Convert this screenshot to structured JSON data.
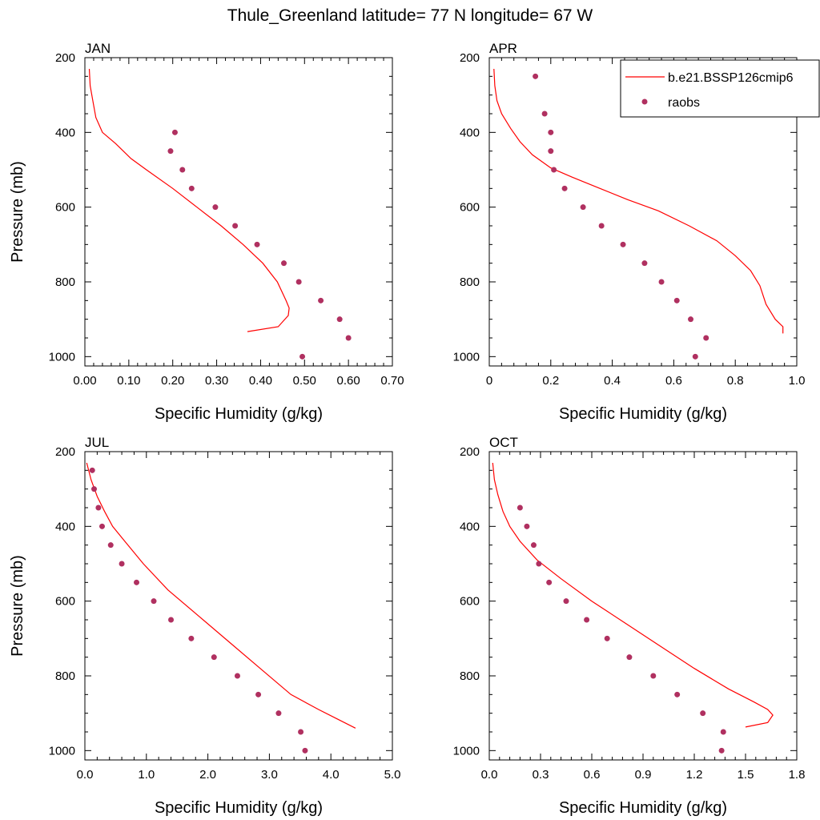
{
  "figure_title": "Thule_Greenland  latitude= 77 N longitude= 67 W",
  "colors": {
    "model": "#ff0000",
    "obs": "#b03060"
  },
  "legend": {
    "placement": "top-right",
    "model_label": "b.e21.BSSP126cmip6",
    "obs_label": "raobs"
  },
  "chart_data": [
    {
      "type": "line",
      "title": "JAN",
      "xlabel": "Specific Humidity (g/kg)",
      "ylabel": "Pressure (mb)",
      "xlim": [
        0,
        0.7
      ],
      "ylim": [
        200,
        1025
      ],
      "y_reversed": true,
      "x_ticks": [
        "0.00",
        "0.10",
        "0.20",
        "0.30",
        "0.40",
        "0.50",
        "0.60",
        "0.70"
      ],
      "x_tick_values": [
        0,
        0.1,
        0.2,
        0.3,
        0.4,
        0.5,
        0.6,
        0.7
      ],
      "y_ticks": [
        "200",
        "400",
        "600",
        "800",
        "1000"
      ],
      "y_tick_values": [
        200,
        400,
        600,
        800,
        1000
      ],
      "series": [
        {
          "name": "b.e21.BSSP126cmip6",
          "kind": "line",
          "x": [
            0.01,
            0.012,
            0.018,
            0.025,
            0.04,
            0.07,
            0.105,
            0.14,
            0.2,
            0.255,
            0.31,
            0.36,
            0.405,
            0.438,
            0.458,
            0.465,
            0.463,
            0.44,
            0.37
          ],
          "y": [
            230,
            275,
            315,
            360,
            400,
            430,
            470,
            500,
            550,
            600,
            650,
            700,
            750,
            800,
            850,
            870,
            890,
            920,
            933
          ]
        },
        {
          "name": "raobs",
          "kind": "scatter",
          "x": [
            0.205,
            0.195,
            0.222,
            0.243,
            0.297,
            0.342,
            0.392,
            0.453,
            0.487,
            0.537,
            0.58,
            0.6,
            0.495
          ],
          "y": [
            400,
            450,
            500,
            550,
            600,
            650,
            700,
            750,
            800,
            850,
            900,
            950,
            1000
          ]
        }
      ]
    },
    {
      "type": "line",
      "title": "APR",
      "xlabel": "Specific Humidity (g/kg)",
      "ylabel": "",
      "xlim": [
        0,
        1.0
      ],
      "ylim": [
        200,
        1025
      ],
      "y_reversed": true,
      "x_ticks": [
        "0",
        "0.2",
        "0.4",
        "0.6",
        "0.8",
        "1.0"
      ],
      "x_tick_values": [
        0,
        0.2,
        0.4,
        0.6,
        0.8,
        1.0
      ],
      "y_ticks": [
        "200",
        "400",
        "600",
        "800",
        "1000"
      ],
      "y_tick_values": [
        200,
        400,
        600,
        800,
        1000
      ],
      "series": [
        {
          "name": "b.e21.BSSP126cmip6",
          "kind": "line",
          "x": [
            0.015,
            0.018,
            0.025,
            0.04,
            0.07,
            0.1,
            0.14,
            0.2,
            0.27,
            0.36,
            0.45,
            0.55,
            0.65,
            0.74,
            0.8,
            0.85,
            0.88,
            0.9,
            0.93,
            0.955,
            0.955
          ],
          "y": [
            230,
            275,
            315,
            350,
            390,
            425,
            460,
            495,
            520,
            550,
            580,
            610,
            650,
            690,
            730,
            770,
            810,
            860,
            900,
            920,
            938
          ]
        },
        {
          "name": "raobs",
          "kind": "scatter",
          "x": [
            0.15,
            0.18,
            0.2,
            0.2,
            0.21,
            0.245,
            0.305,
            0.365,
            0.435,
            0.505,
            0.56,
            0.61,
            0.655,
            0.705,
            0.67
          ],
          "y": [
            250,
            350,
            400,
            450,
            500,
            550,
            600,
            650,
            700,
            750,
            800,
            850,
            900,
            950,
            1000
          ]
        }
      ]
    },
    {
      "type": "line",
      "title": "JUL",
      "xlabel": "Specific Humidity (g/kg)",
      "ylabel": "Pressure (mb)",
      "xlim": [
        0,
        5.0
      ],
      "ylim": [
        200,
        1025
      ],
      "y_reversed": true,
      "x_ticks": [
        "0.0",
        "1.0",
        "2.0",
        "3.0",
        "4.0",
        "5.0"
      ],
      "x_tick_values": [
        0,
        1,
        2,
        3,
        4,
        5
      ],
      "y_ticks": [
        "200",
        "400",
        "600",
        "800",
        "1000"
      ],
      "y_tick_values": [
        200,
        400,
        600,
        800,
        1000
      ],
      "series": [
        {
          "name": "b.e21.BSSP126cmip6",
          "kind": "line",
          "x": [
            0.03,
            0.1,
            0.2,
            0.32,
            0.45,
            0.65,
            0.95,
            1.35,
            1.85,
            2.35,
            2.85,
            3.35,
            3.8,
            4.1,
            4.4
          ],
          "y": [
            230,
            275,
            320,
            360,
            400,
            440,
            500,
            570,
            640,
            710,
            780,
            850,
            890,
            915,
            940
          ]
        },
        {
          "name": "raobs",
          "kind": "scatter",
          "x": [
            0.12,
            0.15,
            0.22,
            0.28,
            0.42,
            0.6,
            0.84,
            1.12,
            1.4,
            1.73,
            2.1,
            2.48,
            2.82,
            3.15,
            3.51,
            3.58
          ],
          "y": [
            250,
            300,
            350,
            400,
            450,
            500,
            550,
            600,
            650,
            700,
            750,
            800,
            850,
            900,
            950,
            1000
          ]
        }
      ]
    },
    {
      "type": "line",
      "title": "OCT",
      "xlabel": "Specific Humidity (g/kg)",
      "ylabel": "",
      "xlim": [
        0,
        1.8
      ],
      "ylim": [
        200,
        1025
      ],
      "y_reversed": true,
      "x_ticks": [
        "0.0",
        "0.3",
        "0.6",
        "0.9",
        "1.2",
        "1.5",
        "1.8"
      ],
      "x_tick_values": [
        0,
        0.3,
        0.6,
        0.9,
        1.2,
        1.5,
        1.8
      ],
      "y_ticks": [
        "200",
        "400",
        "600",
        "800",
        "1000"
      ],
      "y_tick_values": [
        200,
        400,
        600,
        800,
        1000
      ],
      "series": [
        {
          "name": "b.e21.BSSP126cmip6",
          "kind": "line",
          "x": [
            0.02,
            0.03,
            0.05,
            0.08,
            0.12,
            0.18,
            0.28,
            0.42,
            0.6,
            0.8,
            1.0,
            1.2,
            1.4,
            1.55,
            1.63,
            1.66,
            1.63,
            1.5
          ],
          "y": [
            230,
            275,
            315,
            360,
            400,
            440,
            490,
            540,
            600,
            660,
            720,
            780,
            835,
            870,
            890,
            905,
            925,
            937
          ]
        },
        {
          "name": "raobs",
          "kind": "scatter",
          "x": [
            0.18,
            0.22,
            0.26,
            0.29,
            0.35,
            0.45,
            0.57,
            0.69,
            0.82,
            0.96,
            1.1,
            1.25,
            1.37,
            1.36
          ],
          "y": [
            350,
            400,
            450,
            500,
            550,
            600,
            650,
            700,
            750,
            800,
            850,
            900,
            950,
            1000
          ]
        }
      ]
    }
  ]
}
